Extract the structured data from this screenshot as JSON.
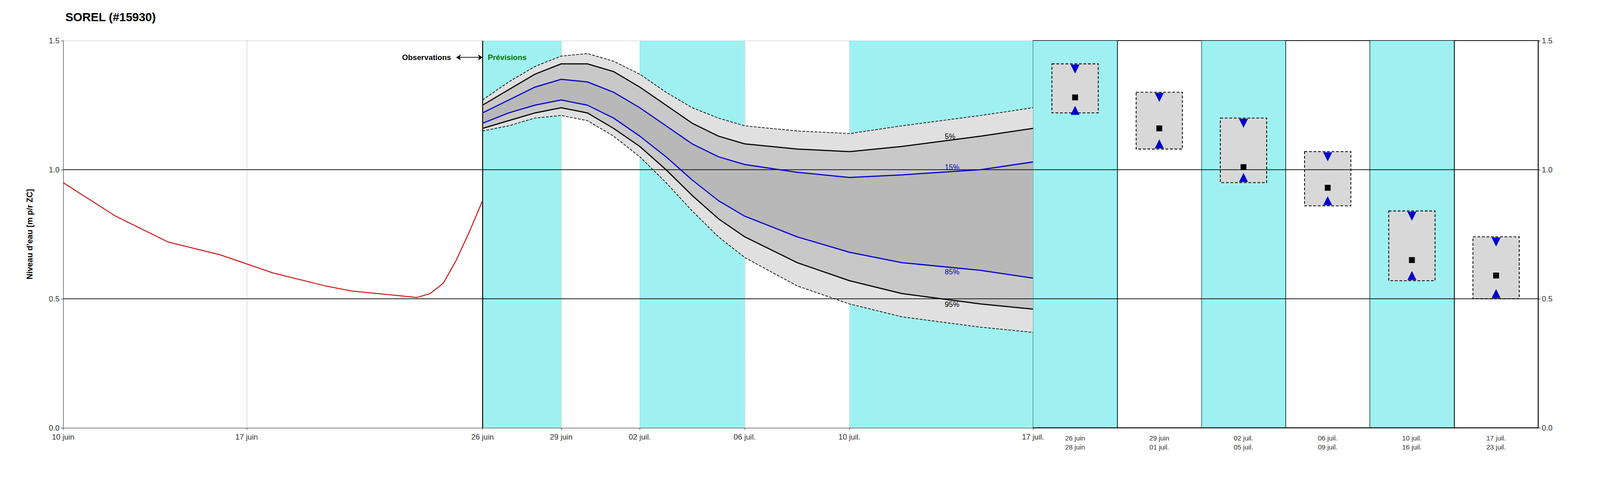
{
  "chart_data": [
    {
      "type": "line",
      "title": "SOREL (#15930)",
      "y_label": "Niveau d'eau [m p/r ZC]",
      "xlim": [
        0,
        37
      ],
      "xticks": [
        {
          "value": 0,
          "label": "10 juin"
        },
        {
          "value": 7,
          "label": "17 juin"
        },
        {
          "value": 16,
          "label": "26 juin"
        },
        {
          "value": 19,
          "label": "29 juin"
        },
        {
          "value": 22,
          "label": "02 juil."
        },
        {
          "value": 26,
          "label": "06 juil."
        },
        {
          "value": 30,
          "label": "10 juil."
        },
        {
          "value": 37,
          "label": "17 juil."
        }
      ],
      "ylim": [
        0.0,
        1.5
      ],
      "yticks": [
        {
          "value": 0.0,
          "label": "0.0"
        },
        0.5,
        {
          "value": 1.0,
          "label": "1.0"
        },
        1.5
      ],
      "grid": true,
      "shade_color": "#7FECEC",
      "shaded_ranges": [
        [
          16,
          19
        ],
        [
          22,
          26
        ],
        [
          30,
          37
        ]
      ],
      "reference_lines": {
        "x": [
          16
        ],
        "y": [
          0.5,
          1.0
        ]
      },
      "series": [
        {
          "x": [
            0,
            2,
            4,
            6,
            8,
            10,
            11,
            12,
            13,
            13.5,
            14,
            14.5,
            15,
            15.5,
            16
          ],
          "values": [
            0.95,
            0.82,
            0.72,
            0.67,
            0.6,
            0.55,
            0.53,
            0.52,
            0.51,
            0.505,
            0.52,
            0.56,
            0.65,
            0.76,
            0.88
          ],
          "color": "#CC0000",
          "line_style": "solid"
        }
      ],
      "bands": [
        {
          "color": "#E0E0E0",
          "x": [
            16,
            17,
            18,
            19,
            20,
            21,
            22,
            23,
            24,
            25,
            26,
            28,
            30,
            32,
            35,
            37
          ],
          "upper": {
            "values": [
              1.27,
              1.34,
              1.4,
              1.44,
              1.45,
              1.42,
              1.37,
              1.3,
              1.24,
              1.2,
              1.17,
              1.15,
              1.14,
              1.17,
              1.21,
              1.24
            ],
            "color": "#000000",
            "line_style": "dashed"
          },
          "lower": {
            "values": [
              1.15,
              1.17,
              1.2,
              1.21,
              1.19,
              1.13,
              1.05,
              0.95,
              0.84,
              0.74,
              0.66,
              0.55,
              0.48,
              0.43,
              0.39,
              0.37
            ],
            "color": "#000000",
            "line_style": "dashed"
          }
        },
        {
          "color": "#C8C8C8",
          "x": [
            16,
            17,
            18,
            19,
            20,
            21,
            22,
            23,
            24,
            25,
            26,
            28,
            30,
            32,
            35,
            37
          ],
          "upper": {
            "name": "5%",
            "values": [
              1.25,
              1.31,
              1.37,
              1.41,
              1.41,
              1.38,
              1.32,
              1.25,
              1.18,
              1.13,
              1.1,
              1.08,
              1.07,
              1.09,
              1.13,
              1.16
            ],
            "color": "#000000",
            "line_style": "solid"
          },
          "lower": {
            "name": "95%",
            "values": [
              1.16,
              1.19,
              1.22,
              1.24,
              1.22,
              1.16,
              1.09,
              1.0,
              0.9,
              0.81,
              0.74,
              0.64,
              0.57,
              0.52,
              0.48,
              0.46
            ],
            "color": "#000000",
            "line_style": "solid"
          }
        },
        {
          "color": "#B8B8B8",
          "x": [
            16,
            17,
            18,
            19,
            20,
            21,
            22,
            23,
            24,
            25,
            26,
            28,
            30,
            32,
            35,
            37
          ],
          "upper": {
            "name": "15%",
            "values": [
              1.22,
              1.27,
              1.32,
              1.35,
              1.34,
              1.3,
              1.24,
              1.17,
              1.1,
              1.05,
              1.02,
              0.99,
              0.97,
              0.98,
              1.0,
              1.03
            ],
            "color": "#0000CC",
            "line_style": "solid"
          },
          "lower": {
            "name": "85%",
            "values": [
              1.18,
              1.22,
              1.25,
              1.27,
              1.25,
              1.2,
              1.13,
              1.05,
              0.96,
              0.88,
              0.82,
              0.74,
              0.68,
              0.64,
              0.61,
              0.58
            ],
            "color": "#0000CC",
            "line_style": "solid"
          }
        }
      ],
      "label_x": 33.5,
      "annotations": [
        {
          "text": "Observations",
          "x": 14.8,
          "y": 1.435,
          "color": "#000000"
        },
        {
          "text": "Prévisions",
          "x": 16.2,
          "y": 1.435,
          "color": "#007700"
        }
      ],
      "arrow": {
        "x": [
          15.0,
          16.0
        ],
        "y": 1.435
      }
    },
    {
      "type": "box",
      "categories": [
        "26 juin\n28 juin",
        "29 juin\n01 juil.",
        "02 juil.\n05 juil.",
        "06 juil.\n09 juil.",
        "10 juil.\n16 juil.",
        "17 juil.\n23 juil."
      ],
      "ylim": [
        0.0,
        1.5
      ],
      "yticks": [
        {
          "value": 0.0,
          "label": "0.0"
        },
        0.5,
        {
          "value": 1.0,
          "label": "1.0"
        },
        1.5
      ],
      "grid": true,
      "tick_labels": "y",
      "shade_color": "#7FECEC",
      "shaded": [
        true,
        false,
        true,
        false,
        true,
        false
      ],
      "reference_lines": {
        "y": [
          0.5,
          1.0
        ]
      },
      "box_color": "#D8D8D8",
      "box_low": [
        1.22,
        1.08,
        0.95,
        0.86,
        0.57,
        0.5
      ],
      "box_high": [
        1.41,
        1.3,
        1.2,
        1.07,
        0.84,
        0.74
      ],
      "series": [
        {
          "values": [
            1.39,
            1.28,
            1.18,
            1.05,
            0.82,
            0.72
          ],
          "color": "#0000CC",
          "marker": "triangle-down"
        },
        {
          "values": [
            1.28,
            1.16,
            1.01,
            0.93,
            0.65,
            0.59
          ],
          "color": "#000000",
          "marker": "square"
        },
        {
          "values": [
            1.23,
            1.1,
            0.97,
            0.88,
            0.59,
            0.52
          ],
          "color": "#0000CC",
          "marker": "triangle-up"
        }
      ]
    }
  ]
}
